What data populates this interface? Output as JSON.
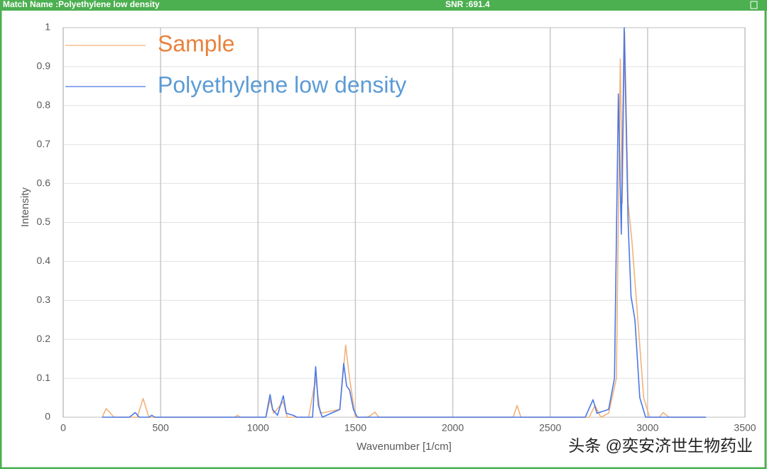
{
  "window": {
    "title": "Match Name :Polyethylene low density",
    "snr": "SNR :691.4"
  },
  "watermark": "头条 @奕安济世生物药业",
  "chart_data": {
    "type": "line",
    "xlabel": "Wavenumber [1/cm]",
    "ylabel": "Intensity",
    "xlim": [
      0,
      3500
    ],
    "ylim": [
      0,
      1
    ],
    "xticks": [
      0,
      500,
      1000,
      1500,
      2000,
      2500,
      3000,
      3500
    ],
    "yticks": [
      0,
      0.1,
      0.2,
      0.3,
      0.4,
      0.5,
      0.6,
      0.7,
      0.8,
      0.9,
      1
    ],
    "grid": true,
    "legend": "top-left",
    "series": [
      {
        "name": "Sample",
        "color": "#f2b27a",
        "label_color": "#e8823c",
        "x": [
          200,
          220,
          240,
          260,
          380,
          410,
          440,
          880,
          895,
          910,
          1040,
          1062,
          1080,
          1130,
          1150,
          1260,
          1296,
          1320,
          1420,
          1450,
          1470,
          1500,
          1560,
          1580,
          1600,
          1620,
          2310,
          2330,
          2350,
          2700,
          2730,
          2760,
          2800,
          2840,
          2860,
          2870,
          2882,
          2900,
          2920,
          2950,
          2980,
          3010,
          3060,
          3080,
          3110,
          3300
        ],
        "values": [
          0,
          0.022,
          0.012,
          0,
          0,
          0.048,
          0,
          0,
          0.005,
          0,
          0,
          0.045,
          0.01,
          0.04,
          0,
          0,
          0.1,
          0.01,
          0.02,
          0.185,
          0.1,
          0,
          0,
          0.005,
          0.013,
          0,
          0,
          0.03,
          0,
          0,
          0.03,
          0,
          0.01,
          0.1,
          0.92,
          0.55,
          0.99,
          0.55,
          0.45,
          0.25,
          0.05,
          0,
          0,
          0.012,
          0,
          0
        ]
      },
      {
        "name": "Polyethylene low density",
        "color": "#4a78e8",
        "label_color": "#5b9bd5",
        "x": [
          200,
          340,
          370,
          390,
          440,
          455,
          470,
          1040,
          1062,
          1075,
          1100,
          1130,
          1145,
          1180,
          1200,
          1280,
          1296,
          1310,
          1330,
          1420,
          1440,
          1455,
          1470,
          1490,
          1510,
          2680,
          2720,
          2740,
          2800,
          2830,
          2850,
          2865,
          2880,
          2900,
          2915,
          2935,
          2960,
          2990,
          3300
        ],
        "values": [
          0,
          0,
          0.012,
          0,
          0,
          0.005,
          0,
          0,
          0.058,
          0.02,
          0.005,
          0.055,
          0.01,
          0.005,
          0,
          0,
          0.13,
          0.03,
          0,
          0.02,
          0.138,
          0.08,
          0.07,
          0.02,
          0,
          0,
          0.045,
          0.01,
          0.02,
          0.1,
          0.83,
          0.47,
          1,
          0.5,
          0.31,
          0.25,
          0.05,
          0,
          0
        ]
      }
    ]
  }
}
